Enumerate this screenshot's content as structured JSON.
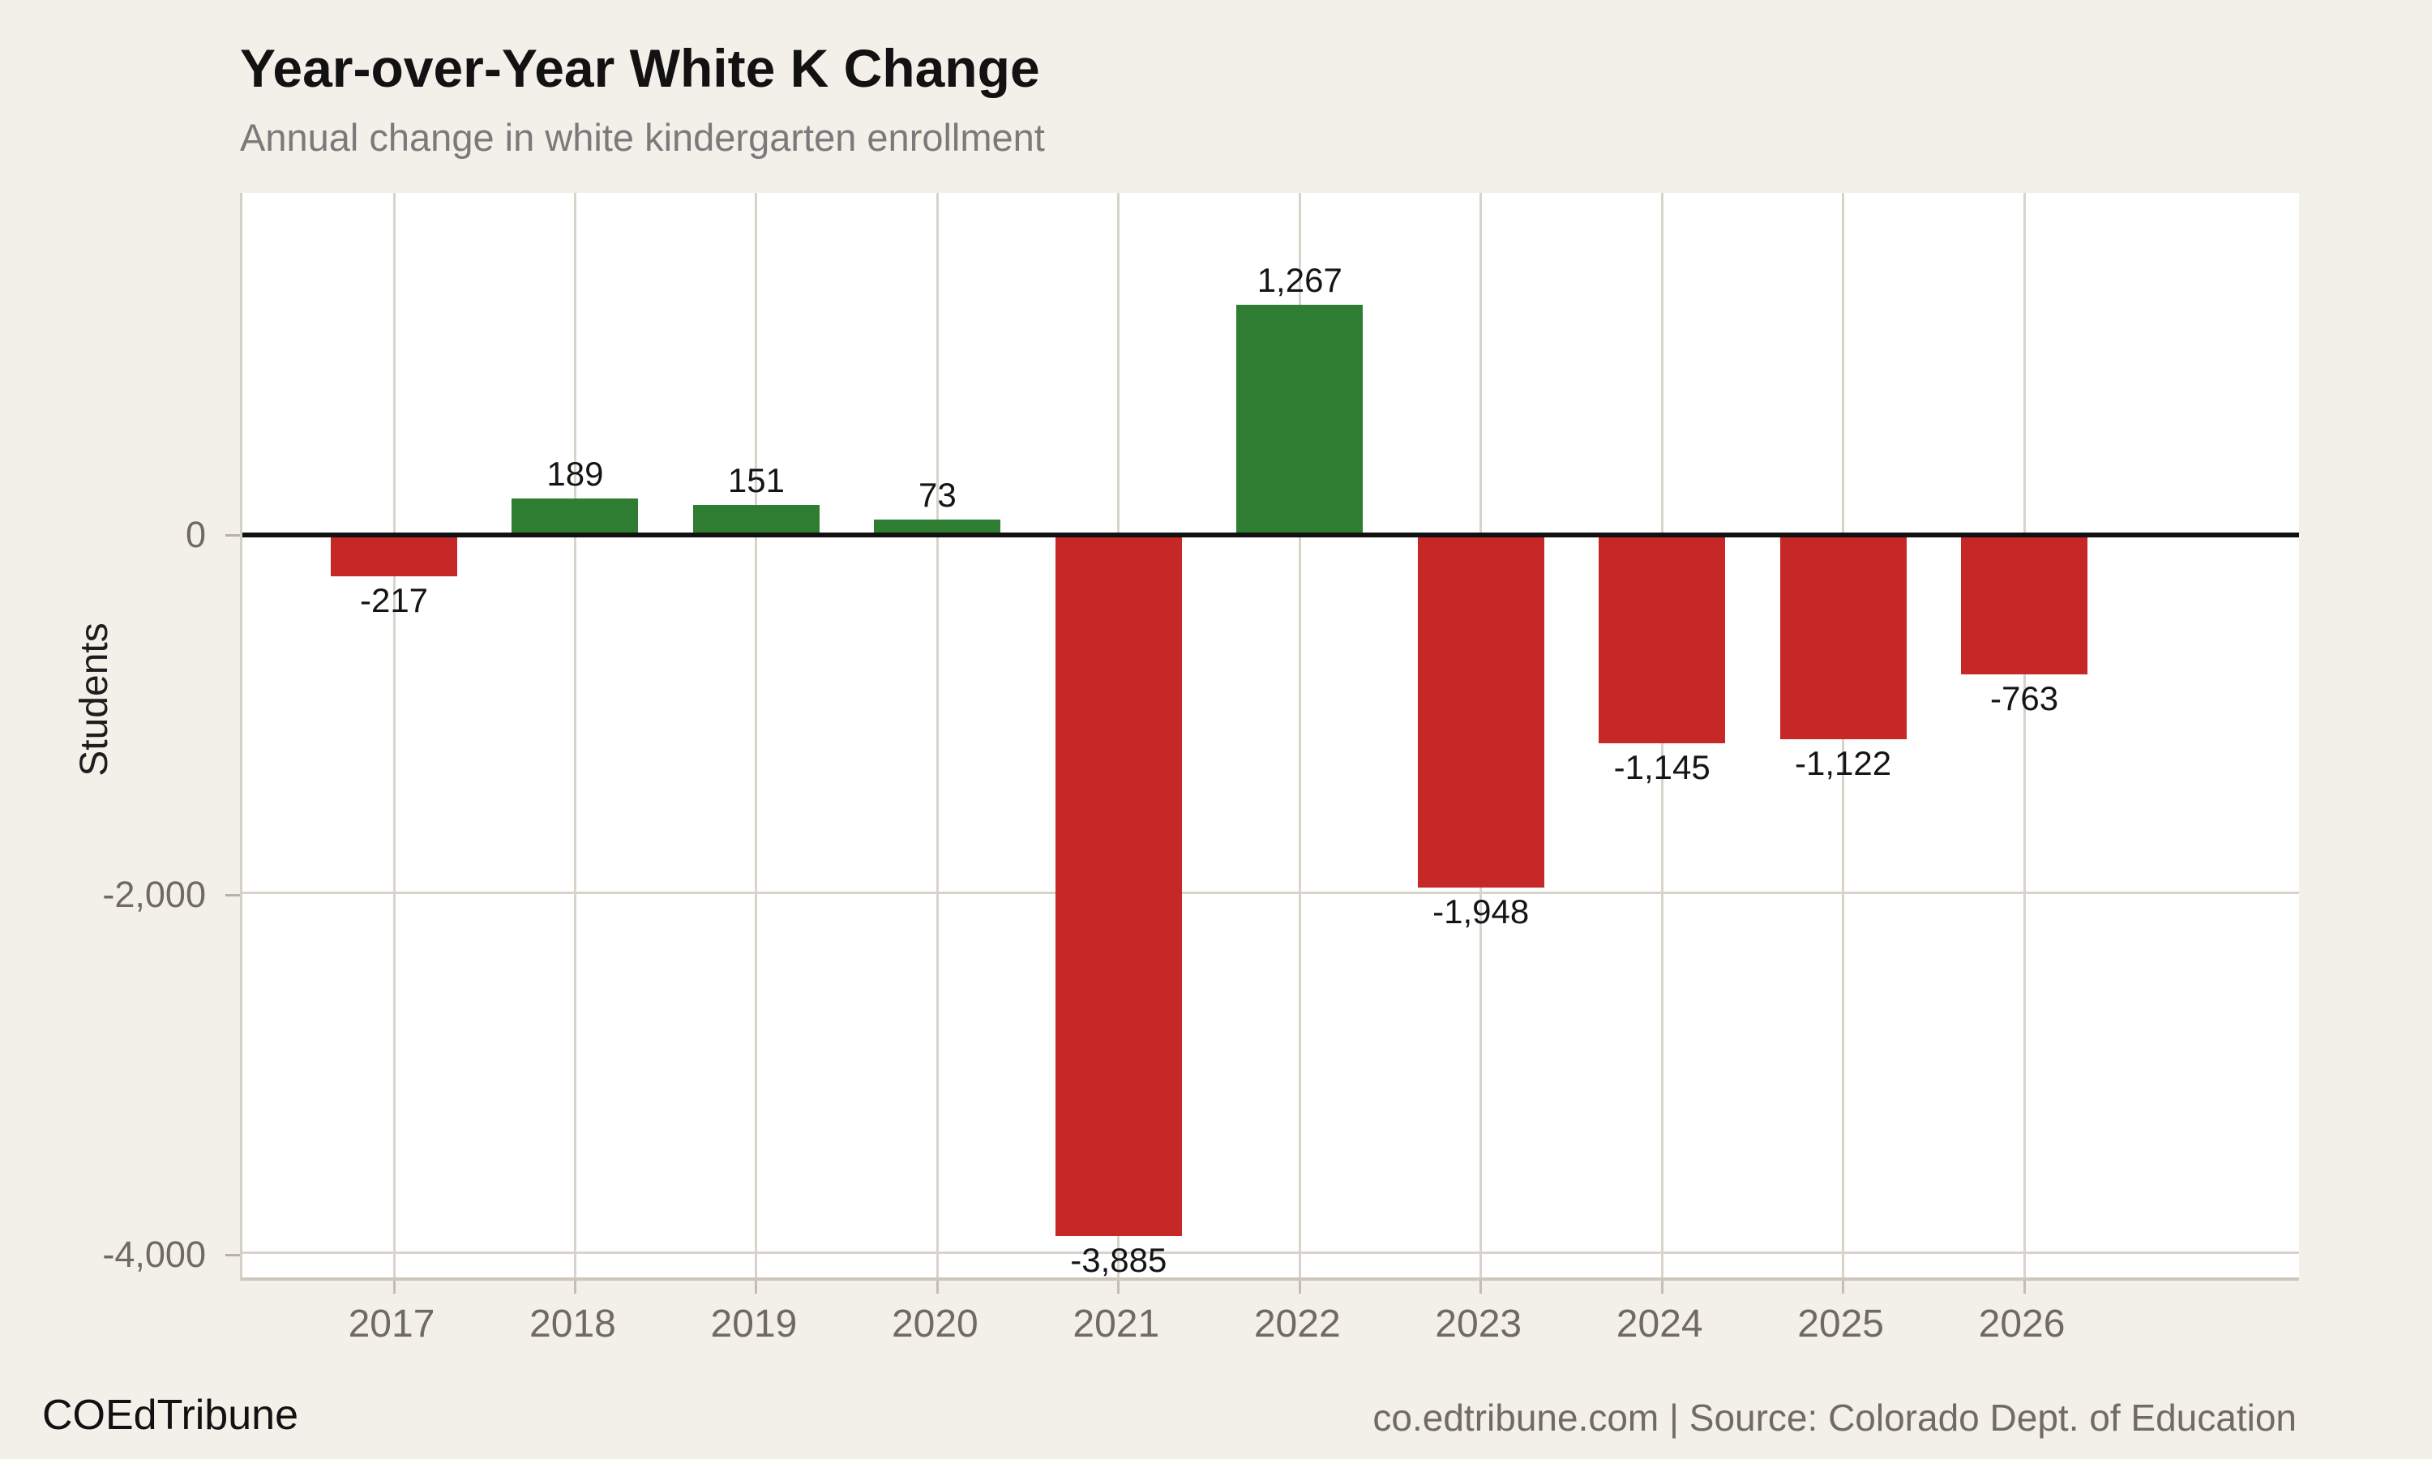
{
  "chart_data": {
    "type": "bar",
    "title": "Year-over-Year White K Change",
    "subtitle": "Annual change in white kindergarten enrollment",
    "ylabel": "Students",
    "xlabel": "",
    "categories": [
      "2017",
      "2018",
      "2019",
      "2020",
      "2021",
      "2022",
      "2023",
      "2024",
      "2025",
      "2026"
    ],
    "values": [
      -217,
      189,
      151,
      73,
      -3885,
      1267,
      -1948,
      -1145,
      -1122,
      -763
    ],
    "value_labels": [
      "-217",
      "189",
      "151",
      "73",
      "-3,885",
      "1,267",
      "-1,948",
      "-1,145",
      "-1,122",
      "-763"
    ],
    "y_ticks": [
      {
        "value": 0,
        "label": "0"
      },
      {
        "value": -2000,
        "label": "-2,000"
      },
      {
        "value": -4000,
        "label": "-4,000"
      }
    ],
    "ylim": [
      -4130,
      1890
    ],
    "grid": true,
    "legend": "none",
    "colors": {
      "positive": "#2e7d32",
      "negative": "#c62828",
      "background": "#f3efe9",
      "plot_background": "#ffffff",
      "gridline": "#d9d4cb",
      "zero_line": "#111111"
    }
  },
  "footer": {
    "left": "COEdTribune",
    "right": "co.edtribune.com | Source: Colorado Dept. of Education"
  }
}
